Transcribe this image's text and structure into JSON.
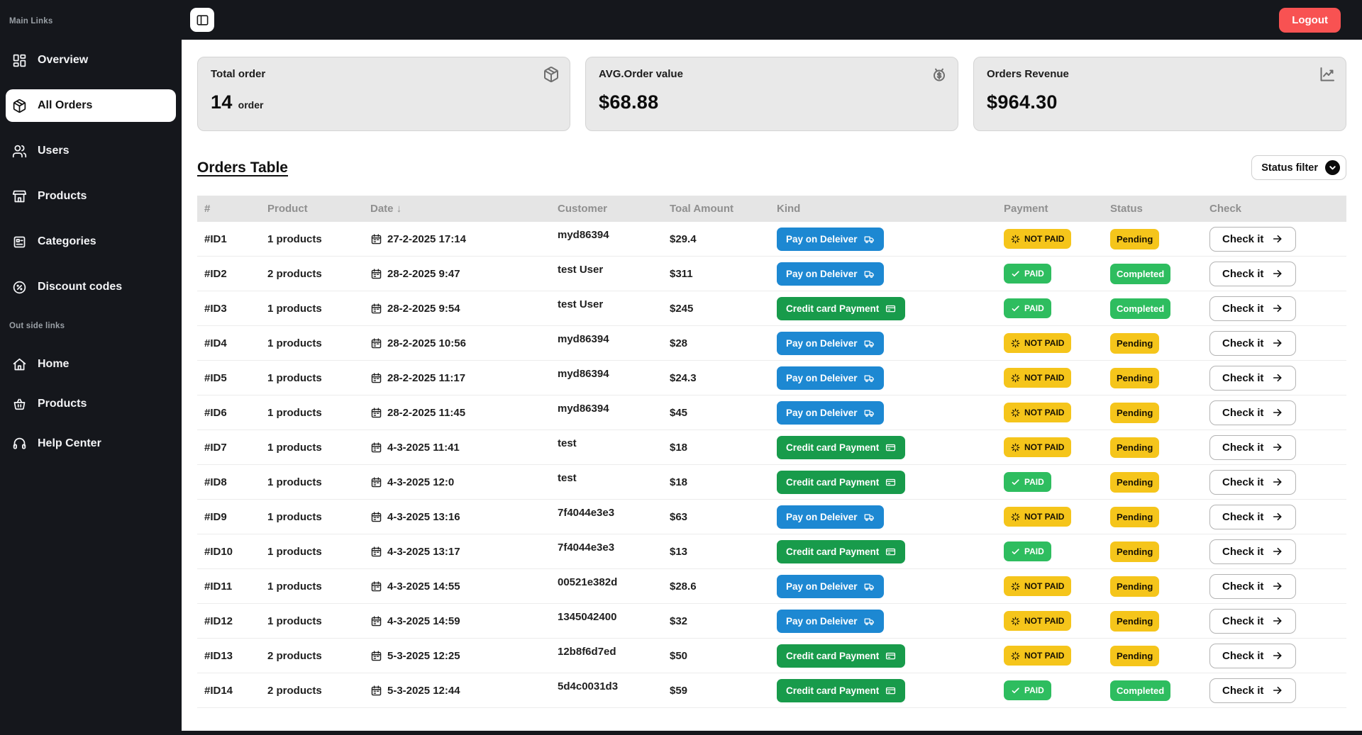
{
  "sidebar": {
    "sections": [
      {
        "label": "Main Links",
        "items": [
          {
            "label": "Overview",
            "icon": "grid-icon",
            "active": false
          },
          {
            "label": "All Orders",
            "icon": "package-icon",
            "active": true
          },
          {
            "label": "Users",
            "icon": "users-icon",
            "active": false
          },
          {
            "label": "Products",
            "icon": "store-icon",
            "active": false
          },
          {
            "label": "Categories",
            "icon": "categories-icon",
            "active": false
          },
          {
            "label": "Discount codes",
            "icon": "percent-circle-icon",
            "active": false
          }
        ]
      },
      {
        "label": "Out side links",
        "items": [
          {
            "label": "Home",
            "icon": "home-icon"
          },
          {
            "label": "Products",
            "icon": "basket-icon"
          },
          {
            "label": "Help Center",
            "icon": "headset-icon"
          }
        ]
      }
    ]
  },
  "topbar": {
    "toggle_icon": "panel-left-icon",
    "logout_label": "Logout"
  },
  "stats": [
    {
      "title": "Total order",
      "value": "14",
      "unit": "order",
      "icon": "package-icon"
    },
    {
      "title": "AVG.Order value",
      "value": "$68.88",
      "unit": "",
      "icon": "badge-dollar-icon"
    },
    {
      "title": "Orders Revenue",
      "value": "$964.30",
      "unit": "",
      "icon": "chart-line-icon"
    }
  ],
  "orders_section": {
    "title": "Orders Table",
    "filter_label": "Status filter",
    "filter_icon": "chevron-down-icon"
  },
  "table": {
    "columns": [
      "#",
      "Product",
      "Date ↓",
      "Customer",
      "Toal Amount",
      "Kind",
      "Payment",
      "Status",
      "Check"
    ],
    "check_label": "Check it",
    "rows": [
      {
        "id": "#ID1",
        "product": "1 products",
        "date": "27-2-2025 17:14",
        "customer": "myd86394",
        "amount": "$29.4",
        "kind": "Pay on Deleiver",
        "payment": "NOT PAID",
        "status": "Pending"
      },
      {
        "id": "#ID2",
        "product": "2 products",
        "date": "28-2-2025 9:47",
        "customer": "test User",
        "amount": "$311",
        "kind": "Pay on Deleiver",
        "payment": "PAID",
        "status": "Completed"
      },
      {
        "id": "#ID3",
        "product": "1 products",
        "date": "28-2-2025 9:54",
        "customer": "test User",
        "amount": "$245",
        "kind": "Credit card Payment",
        "payment": "PAID",
        "status": "Completed"
      },
      {
        "id": "#ID4",
        "product": "1 products",
        "date": "28-2-2025 10:56",
        "customer": "myd86394",
        "amount": "$28",
        "kind": "Pay on Deleiver",
        "payment": "NOT PAID",
        "status": "Pending"
      },
      {
        "id": "#ID5",
        "product": "1 products",
        "date": "28-2-2025 11:17",
        "customer": "myd86394",
        "amount": "$24.3",
        "kind": "Pay on Deleiver",
        "payment": "NOT PAID",
        "status": "Pending"
      },
      {
        "id": "#ID6",
        "product": "1 products",
        "date": "28-2-2025 11:45",
        "customer": "myd86394",
        "amount": "$45",
        "kind": "Pay on Deleiver",
        "payment": "NOT PAID",
        "status": "Pending"
      },
      {
        "id": "#ID7",
        "product": "1 products",
        "date": "4-3-2025 11:41",
        "customer": "test",
        "amount": "$18",
        "kind": "Credit card Payment",
        "payment": "NOT PAID",
        "status": "Pending"
      },
      {
        "id": "#ID8",
        "product": "1 products",
        "date": "4-3-2025 12:0",
        "customer": "test",
        "amount": "$18",
        "kind": "Credit card Payment",
        "payment": "PAID",
        "status": "Pending"
      },
      {
        "id": "#ID9",
        "product": "1 products",
        "date": "4-3-2025 13:16",
        "customer": "7f4044e3e3",
        "amount": "$63",
        "kind": "Pay on Deleiver",
        "payment": "NOT PAID",
        "status": "Pending"
      },
      {
        "id": "#ID10",
        "product": "1 products",
        "date": "4-3-2025 13:17",
        "customer": "7f4044e3e3",
        "amount": "$13",
        "kind": "Credit card Payment",
        "payment": "PAID",
        "status": "Pending"
      },
      {
        "id": "#ID11",
        "product": "1 products",
        "date": "4-3-2025 14:55",
        "customer": "00521e382d",
        "amount": "$28.6",
        "kind": "Pay on Deleiver",
        "payment": "NOT PAID",
        "status": "Pending"
      },
      {
        "id": "#ID12",
        "product": "1 products",
        "date": "4-3-2025 14:59",
        "customer": "1345042400",
        "amount": "$32",
        "kind": "Pay on Deleiver",
        "payment": "NOT PAID",
        "status": "Pending"
      },
      {
        "id": "#ID13",
        "product": "2 products",
        "date": "5-3-2025 12:25",
        "customer": "12b8f6d7ed",
        "amount": "$50",
        "kind": "Credit card Payment",
        "payment": "NOT PAID",
        "status": "Pending"
      },
      {
        "id": "#ID14",
        "product": "2 products",
        "date": "5-3-2025 12:44",
        "customer": "5d4c0031d3",
        "amount": "$59",
        "kind": "Credit card Payment",
        "payment": "PAID",
        "status": "Completed"
      }
    ],
    "kind_icons": {
      "Pay on Deleiver": "truck-icon",
      "Credit card Payment": "credit-card-icon"
    },
    "payment_icons": {
      "PAID": "check-icon",
      "NOT PAID": "spinner-icon"
    }
  },
  "colors": {
    "sidebar_bg": "#15171c",
    "logout_red": "#f85252",
    "deliver_blue": "#1d88d2",
    "credit_green": "#189b4b",
    "badge_green": "#2ebd5f",
    "badge_yellow": "#f5c51b",
    "card_bg": "#e9e9e9",
    "table_header_bg": "#e5e5e5"
  }
}
